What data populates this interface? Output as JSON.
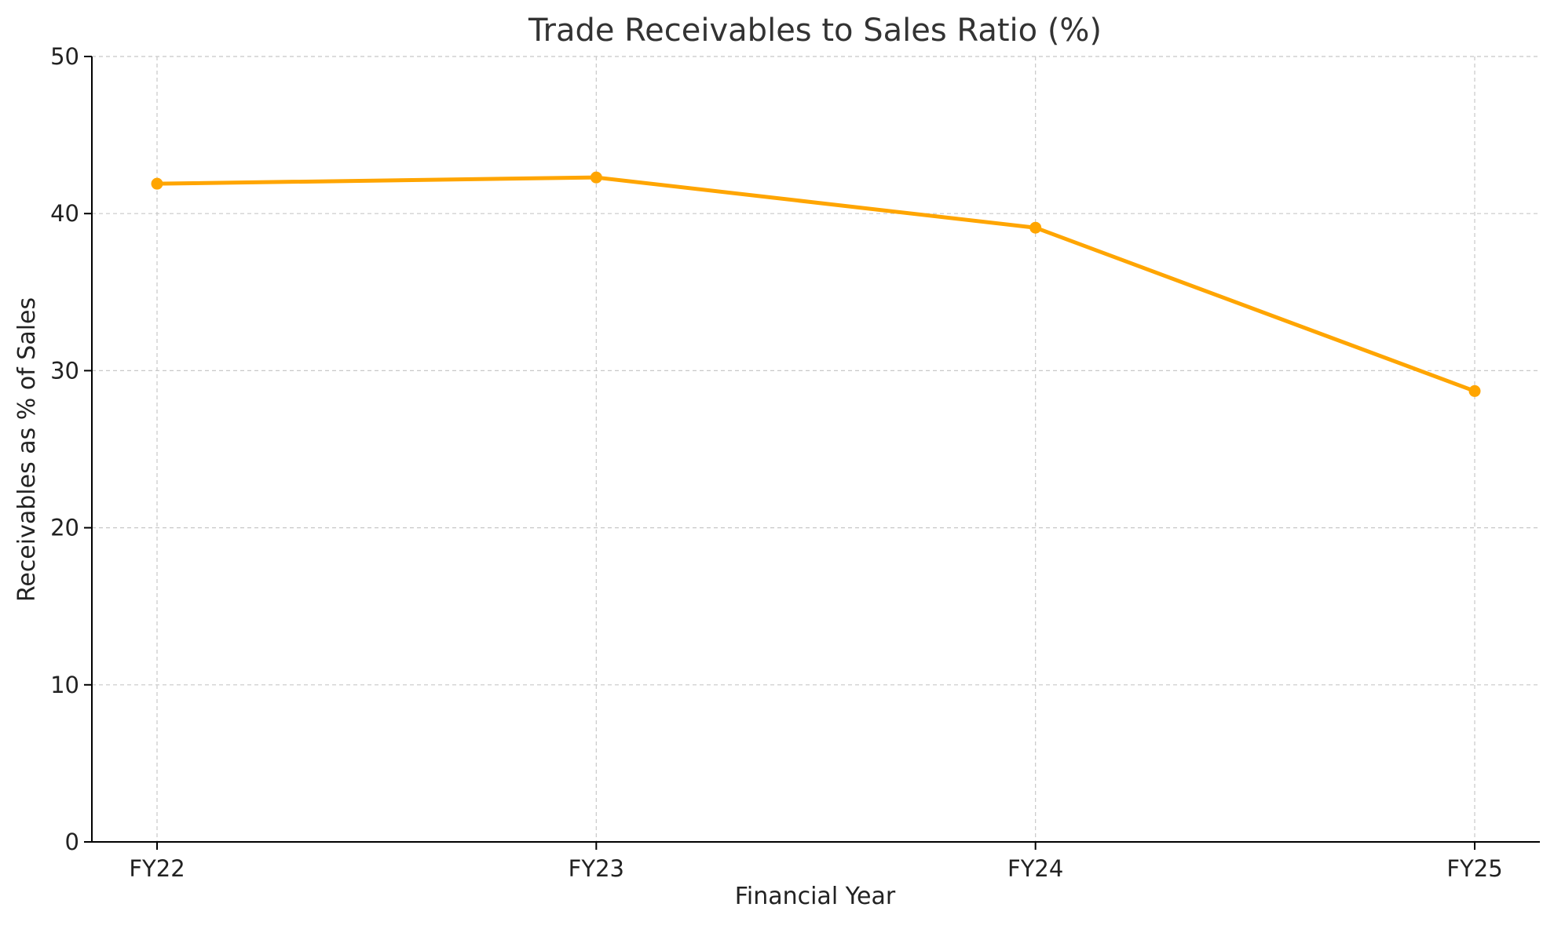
{
  "chart_data": {
    "type": "line",
    "title": "Trade Receivables to Sales Ratio (%)",
    "xlabel": "Financial Year",
    "ylabel": "Receivables as % of Sales",
    "categories": [
      "FY22",
      "FY23",
      "FY24",
      "FY25"
    ],
    "series": [
      {
        "values": [
          41.9,
          42.3,
          39.1,
          28.7
        ],
        "color": "#FFA500",
        "marker": "circle"
      }
    ],
    "ylim": [
      0,
      50
    ],
    "yticks": [
      0,
      10,
      20,
      30,
      40,
      50
    ],
    "grid": true,
    "grid_style": "dashed",
    "legend": "none"
  }
}
